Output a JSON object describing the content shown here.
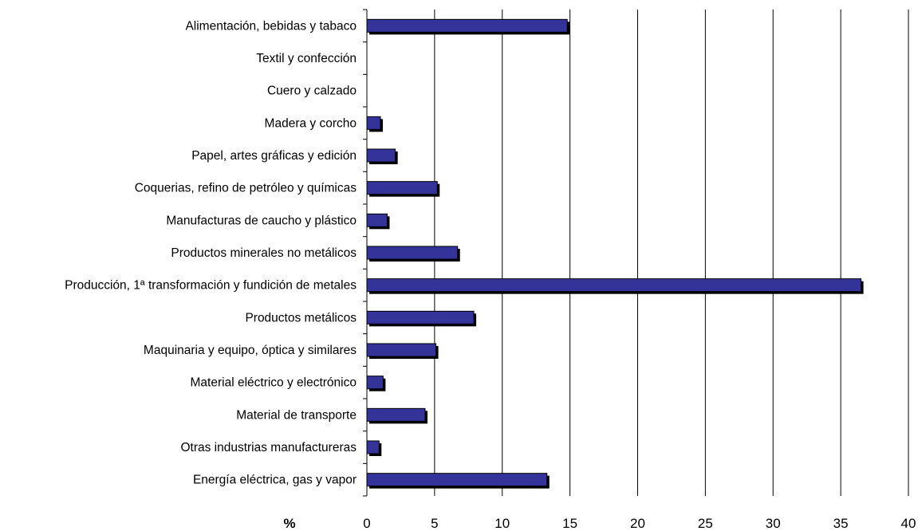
{
  "chart_data": {
    "type": "bar",
    "orientation": "horizontal",
    "categories": [
      "Alimentación, bebidas y tabaco",
      "Textil y confección",
      "Cuero y calzado",
      "Madera y corcho",
      "Papel,  artes gráficas y edición",
      "Coquerias, refino de petróleo y químicas",
      "Manufacturas de caucho y plástico",
      "Productos minerales no metálicos",
      "Producción, 1ª transformación y fundición de metales",
      "Productos  metálicos",
      "Maquinaria y equipo, óptica y similares",
      "Material eléctrico y electrónico",
      "Material de transporte",
      "Otras industrias manufactureras",
      "Energía eléctrica, gas y vapor"
    ],
    "values": [
      14.8,
      0,
      0,
      1.0,
      2.1,
      5.2,
      1.5,
      6.7,
      36.5,
      7.9,
      5.1,
      1.2,
      4.3,
      0.9,
      13.3
    ],
    "xlabel": "%",
    "xlim": [
      0,
      40
    ],
    "xticks": [
      0,
      5,
      10,
      15,
      20,
      25,
      30,
      35,
      40
    ],
    "grid": true,
    "bar_color": "#333399",
    "shadow_color": "#000000"
  }
}
